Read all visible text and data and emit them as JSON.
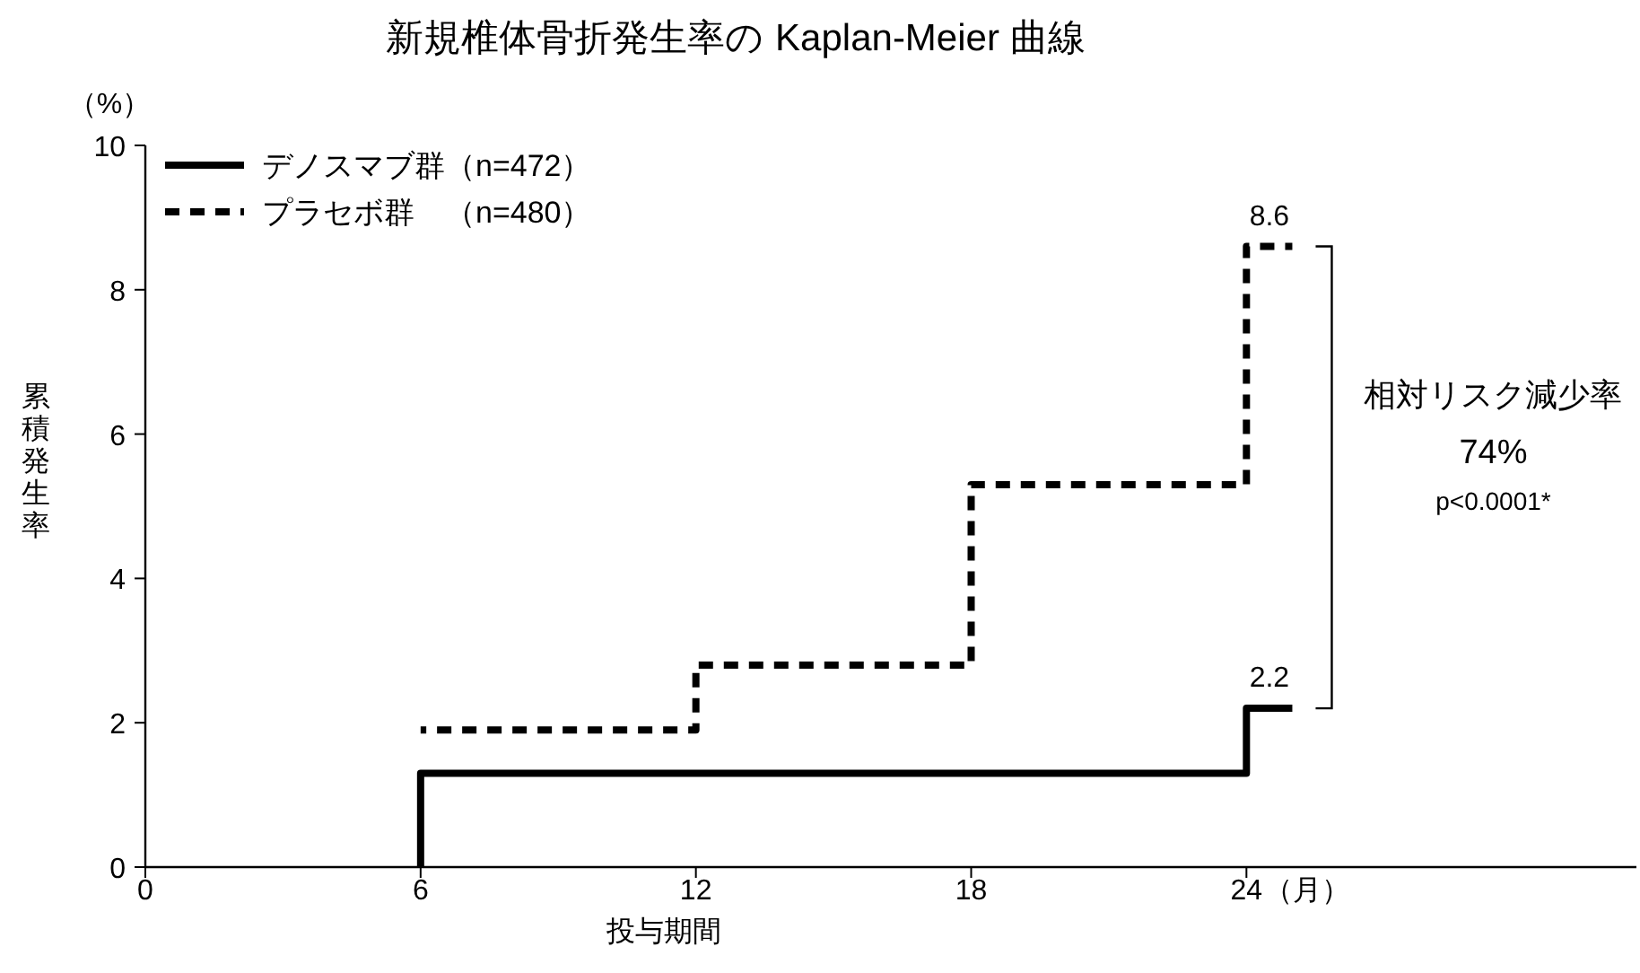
{
  "chart_data": {
    "type": "step",
    "title": "新規椎体骨折発生率の Kaplan-Meier 曲線",
    "xlabel": "投与期間",
    "ylabel": "累積発生率",
    "annotations": [
      "（%）",
      "（月）",
      "相対リスク減少率",
      "74%",
      "p<0.0001*"
    ],
    "legend": "top left",
    "xlim": [
      0,
      32.5
    ],
    "xticks": [
      0,
      6,
      12,
      18,
      24
    ],
    "ylim": [
      0,
      10
    ],
    "yticks": [
      0,
      2,
      4,
      6,
      8,
      10
    ],
    "series": [
      {
        "name": "デノスマブ群（n=472）",
        "color": "#000000",
        "line_style": "solid",
        "x": [
          6,
          6,
          24,
          25
        ],
        "values": [
          0,
          1.3,
          2.2,
          2.2
        ],
        "value_labels": [
          null,
          null,
          "2.2",
          null
        ]
      },
      {
        "name": "プラセボ群　（n=480）",
        "color": "#000000",
        "line_style": "dashed",
        "x": [
          6,
          12,
          18,
          24,
          25
        ],
        "values": [
          1.9,
          2.8,
          5.3,
          8.6,
          8.6
        ],
        "value_labels": [
          null,
          null,
          null,
          "8.6",
          null
        ]
      }
    ]
  }
}
